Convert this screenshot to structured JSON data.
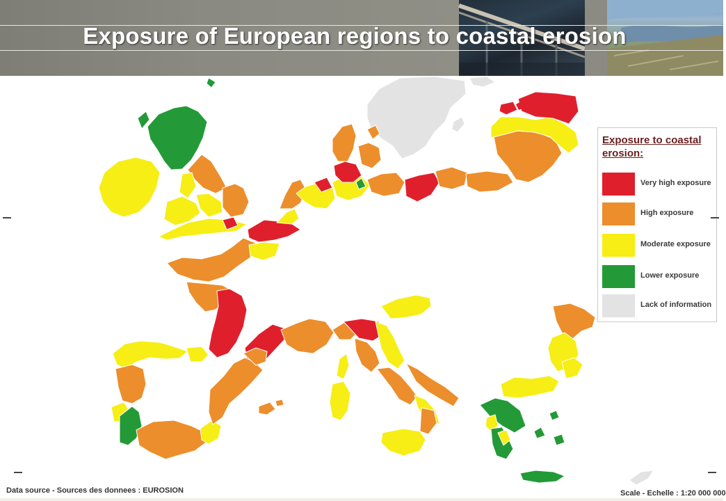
{
  "title": "Exposure of European regions to coastal erosion",
  "legend": {
    "title": "Exposure to coastal erosion:",
    "items": [
      {
        "label": "Very high exposure",
        "color": "#e01f2d"
      },
      {
        "label": "High exposure",
        "color": "#ec8e2c"
      },
      {
        "label": "Moderate exposure",
        "color": "#f6ee14"
      },
      {
        "label": "Lower exposure",
        "color": "#239a37"
      },
      {
        "label": "Lack of information",
        "color": "#e3e3e3"
      }
    ]
  },
  "map_colors": {
    "very_high": "#e01f2d",
    "high": "#ec8e2c",
    "moderate": "#f6ee14",
    "lower": "#239a37",
    "no_info": "#e3e3e3",
    "region_border": "#ffffff"
  },
  "footer": {
    "source": "Data source - Sources des donnees : EUROSION",
    "scale": "Scale - Echelle : 1:20 000 000"
  }
}
